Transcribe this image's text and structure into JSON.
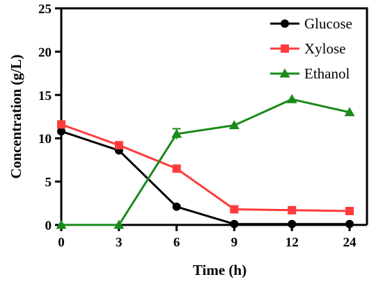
{
  "chart_data": {
    "type": "line",
    "title": "",
    "xlabel": "Time (h)",
    "ylabel": "Concentration (g/L)",
    "categories": [
      "0",
      "3",
      "6",
      "9",
      "12",
      "24"
    ],
    "x_axis_note": "categorical spacing; tick labels printed as shown",
    "ylim": [
      0,
      25
    ],
    "yticks": [
      0,
      5,
      10,
      15,
      20,
      25
    ],
    "grid": false,
    "legend_position": "top-right",
    "series": [
      {
        "name": "Glucose",
        "color": "#000000",
        "marker": "circle",
        "values": [
          10.8,
          8.6,
          2.1,
          0.1,
          0.1,
          0.1
        ]
      },
      {
        "name": "Xylose",
        "color": "#ff3b3b",
        "marker": "square",
        "values": [
          11.6,
          9.2,
          6.5,
          1.8,
          1.7,
          1.6
        ]
      },
      {
        "name": "Ethanol",
        "color": "#1a8a1a",
        "marker": "triangle",
        "values": [
          0.0,
          0.0,
          10.5,
          11.5,
          14.5,
          13.0
        ],
        "error": [
          0,
          0,
          0.6,
          0,
          0,
          0
        ]
      }
    ]
  }
}
